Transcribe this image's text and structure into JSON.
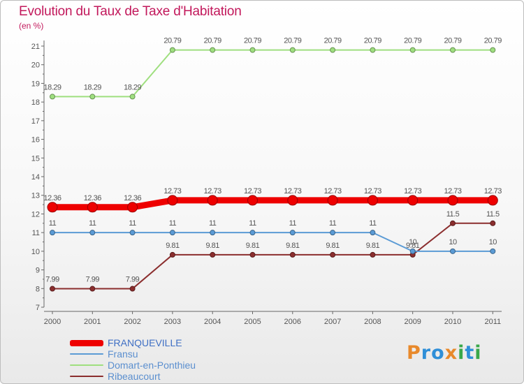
{
  "title": "Evolution du Taux de Taxe d'Habitation",
  "unit_label": "(en %)",
  "logo": {
    "text": "Proxiti",
    "colors": [
      "#e8892b",
      "#2f8fd8",
      "#2f8fd8",
      "#e8892b",
      "#3aa84a",
      "#2f8fd8",
      "#3aa84a"
    ]
  },
  "chart_data": {
    "type": "line",
    "x": [
      "2000",
      "2001",
      "2002",
      "2003",
      "2004",
      "2005",
      "2006",
      "2007",
      "2008",
      "2009",
      "2010",
      "2011"
    ],
    "ylim": [
      7,
      21
    ],
    "yticks": [
      7,
      8,
      9,
      10,
      11,
      12,
      13,
      14,
      15,
      16,
      17,
      18,
      19,
      20,
      21
    ],
    "grid": false,
    "legend_position": "bottom-left",
    "series": [
      {
        "name": "FRANQUEVILLE",
        "color": "#ee0000",
        "values": [
          12.36,
          12.36,
          12.36,
          12.73,
          12.73,
          12.73,
          12.73,
          12.73,
          12.73,
          12.73,
          12.73,
          12.73
        ],
        "labels": [
          "12.36",
          "12.36",
          "12.36",
          "12.73",
          "12.73",
          "12.73",
          "12.73",
          "12.73",
          "12.73",
          "12.73",
          "12.73",
          "12.73"
        ]
      },
      {
        "name": "Fransu",
        "color": "#5b9bd5",
        "values": [
          11,
          11,
          11,
          11,
          11,
          11,
          11,
          11,
          11,
          10,
          10,
          10
        ],
        "labels": [
          "11",
          "11",
          "11",
          "11",
          "11",
          "11",
          "11",
          "11",
          "11",
          "10",
          "10",
          "10"
        ]
      },
      {
        "name": "Domart-en-Ponthieu",
        "color": "#9fdf7f",
        "values": [
          18.29,
          18.29,
          18.29,
          20.79,
          20.79,
          20.79,
          20.79,
          20.79,
          20.79,
          20.79,
          20.79,
          20.79
        ],
        "labels": [
          "18.29",
          "18.29",
          "18.29",
          "20.79",
          "20.79",
          "20.79",
          "20.79",
          "20.79",
          "20.79",
          "20.79",
          "20.79",
          "20.79"
        ]
      },
      {
        "name": "Ribeaucourt",
        "color": "#8b2e2e",
        "values": [
          7.99,
          7.99,
          7.99,
          9.81,
          9.81,
          9.81,
          9.81,
          9.81,
          9.81,
          9.81,
          11.5,
          11.5
        ],
        "labels": [
          "7.99",
          "7.99",
          "7.99",
          "9.81",
          "9.81",
          "9.81",
          "9.81",
          "9.81",
          "9.81",
          "9.81",
          "11.5",
          "11.5"
        ]
      }
    ]
  }
}
